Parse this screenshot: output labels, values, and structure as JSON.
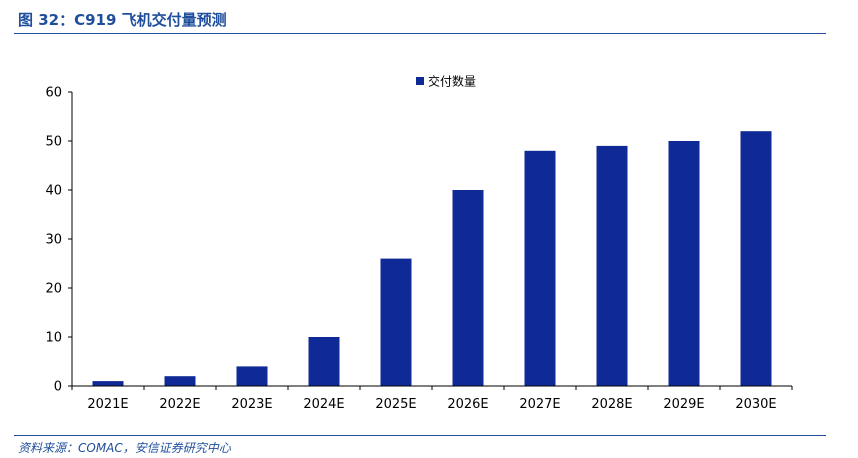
{
  "figure": {
    "title": "图 32：C919 飞机交付量预测",
    "source": "资料来源：COMAC，安信证券研究中心"
  },
  "chart_data": {
    "type": "bar",
    "categories": [
      "2021E",
      "2022E",
      "2023E",
      "2024E",
      "2025E",
      "2026E",
      "2027E",
      "2028E",
      "2029E",
      "2030E"
    ],
    "series": [
      {
        "name": "交付数量",
        "values": [
          1,
          2,
          4,
          10,
          26,
          40,
          48,
          49,
          50,
          52
        ],
        "color": "#0f2a96"
      }
    ],
    "yticks": [
      "0",
      "10",
      "20",
      "30",
      "40",
      "50",
      "60"
    ],
    "ylim": [
      0,
      60
    ],
    "grid": false,
    "legend": "top-right"
  }
}
